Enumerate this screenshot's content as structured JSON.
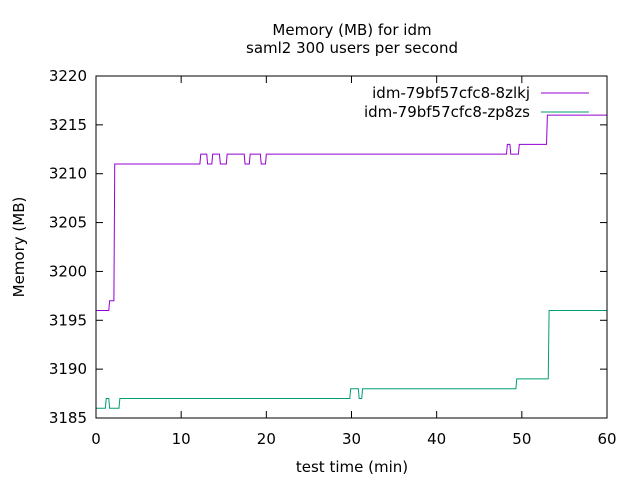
{
  "chart_data": {
    "type": "line",
    "title": "Memory (MB) for idm",
    "subtitle": "saml2 300 users per second",
    "xlabel": "test time (min)",
    "ylabel": "Memory (MB)",
    "xlim": [
      0,
      60
    ],
    "ylim": [
      3185,
      3220
    ],
    "xticks": [
      0,
      10,
      20,
      30,
      40,
      50,
      60
    ],
    "yticks": [
      3185,
      3190,
      3195,
      3200,
      3205,
      3210,
      3215,
      3220
    ],
    "grid": false,
    "legend": "top-right",
    "series": [
      {
        "name": "idm-79bf57cfc8-8zlkj",
        "color": "#9400d3",
        "x": [
          0,
          1.5,
          1.6,
          2.1,
          2.2,
          12.2,
          12.3,
          13.0,
          13.1,
          13.6,
          13.7,
          14.5,
          14.6,
          15.3,
          15.4,
          16.0,
          16.1,
          17.4,
          17.5,
          18.0,
          18.1,
          19.3,
          19.4,
          19.9,
          20.0,
          48.2,
          48.3,
          48.6,
          48.7,
          49.6,
          49.7,
          52.9,
          53.0,
          60
        ],
        "y": [
          3196,
          3196,
          3197,
          3197,
          3211,
          3211,
          3212,
          3212,
          3211,
          3211,
          3212,
          3212,
          3211,
          3211,
          3212,
          3212,
          3212,
          3212,
          3211,
          3211,
          3212,
          3212,
          3211,
          3211,
          3212,
          3212,
          3213,
          3213,
          3212,
          3212,
          3213,
          3213,
          3216,
          3216
        ]
      },
      {
        "name": "idm-79bf57cfc8-zp8zs",
        "color": "#009e73",
        "x": [
          0,
          1.1,
          1.2,
          1.5,
          1.6,
          2.7,
          2.8,
          29.8,
          29.9,
          30.8,
          30.9,
          31.2,
          31.3,
          49.3,
          49.4,
          53.1,
          53.2,
          60
        ],
        "y": [
          3186,
          3186,
          3187,
          3187,
          3186,
          3186,
          3187,
          3187,
          3188,
          3188,
          3187,
          3187,
          3188,
          3188,
          3189,
          3189,
          3196,
          3196
        ]
      }
    ]
  }
}
